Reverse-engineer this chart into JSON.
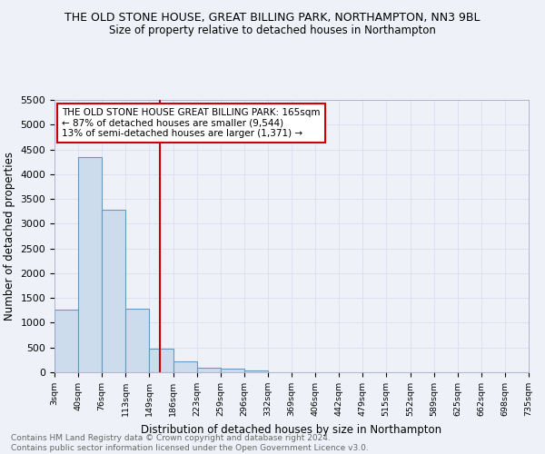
{
  "title": "THE OLD STONE HOUSE, GREAT BILLING PARK, NORTHAMPTON, NN3 9BL",
  "subtitle": "Size of property relative to detached houses in Northampton",
  "xlabel": "Distribution of detached houses by size in Northampton",
  "ylabel": "Number of detached properties",
  "bar_edges": [
    3,
    40,
    76,
    113,
    149,
    186,
    223,
    259,
    296,
    332,
    369,
    406,
    442,
    479,
    515,
    552,
    589,
    625,
    662,
    698,
    735
  ],
  "bar_heights": [
    1270,
    4340,
    3290,
    1290,
    480,
    215,
    95,
    65,
    45,
    0,
    0,
    0,
    0,
    0,
    0,
    0,
    0,
    0,
    0,
    0
  ],
  "bar_color": "#ccdcec",
  "bar_edge_color": "#6699bb",
  "bar_edge_width": 0.8,
  "ylim": [
    0,
    5500
  ],
  "yticks": [
    0,
    500,
    1000,
    1500,
    2000,
    2500,
    3000,
    3500,
    4000,
    4500,
    5000,
    5500
  ],
  "property_line_x": 165,
  "property_line_color": "#cc0000",
  "annotation_text": "THE OLD STONE HOUSE GREAT BILLING PARK: 165sqm\n← 87% of detached houses are smaller (9,544)\n13% of semi-detached houses are larger (1,371) →",
  "annotation_box_color": "#ffffff",
  "annotation_box_edge_color": "#cc0000",
  "grid_color": "#ddddee",
  "background_color": "#eef2f8",
  "plot_bg_color": "#eef2f8",
  "footer_text": "Contains HM Land Registry data © Crown copyright and database right 2024.\nContains public sector information licensed under the Open Government Licence v3.0.",
  "tick_labels": [
    "3sqm",
    "40sqm",
    "76sqm",
    "113sqm",
    "149sqm",
    "186sqm",
    "223sqm",
    "259sqm",
    "296sqm",
    "332sqm",
    "369sqm",
    "406sqm",
    "442sqm",
    "479sqm",
    "515sqm",
    "552sqm",
    "589sqm",
    "625sqm",
    "662sqm",
    "698sqm",
    "735sqm"
  ],
  "title_fontsize": 9,
  "subtitle_fontsize": 8.5,
  "tick_fontsize": 6.8,
  "ylabel_fontsize": 8.5,
  "xlabel_fontsize": 8.5,
  "annotation_fontsize": 7.5,
  "footer_fontsize": 6.5
}
